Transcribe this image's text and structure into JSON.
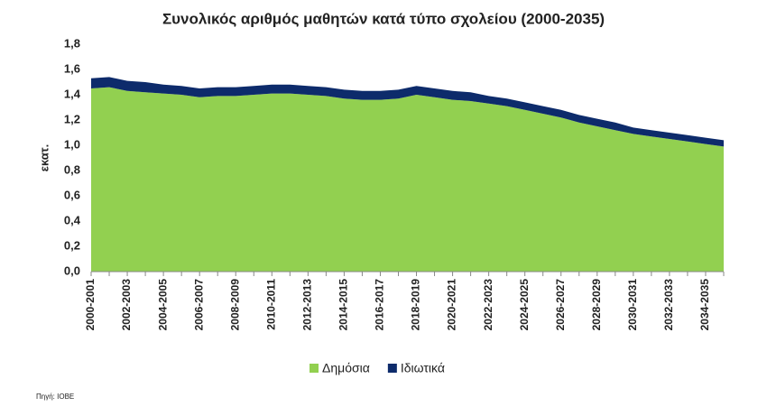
{
  "chart_data": {
    "type": "stacked-area",
    "title": "Συνολικός αριθμός μαθητών κατά τύπο σχολείου (2000-2035)",
    "y_label": "εκατ.",
    "source": "Πηγή: ΙΟΒΕ",
    "categories": [
      "2000-2001",
      null,
      "2002-2003",
      null,
      "2004-2005",
      null,
      "2006-2007",
      null,
      "2008-2009",
      null,
      "2010-2011",
      null,
      "2012-2013",
      null,
      "2014-2015",
      null,
      "2016-2017",
      null,
      "2018-2019",
      null,
      "2020-2021",
      null,
      "2022-2023",
      null,
      "2024-2025",
      null,
      "2026-2027",
      null,
      "2028-2029",
      null,
      "2030-2031",
      null,
      "2032-2033",
      null,
      "2034-2035",
      null
    ],
    "series": [
      {
        "name": "Δημόσια",
        "color": "#92d050",
        "values": [
          1.45,
          1.46,
          1.43,
          1.42,
          1.41,
          1.4,
          1.38,
          1.39,
          1.39,
          1.4,
          1.41,
          1.41,
          1.4,
          1.39,
          1.37,
          1.36,
          1.36,
          1.37,
          1.4,
          1.38,
          1.36,
          1.35,
          1.33,
          1.31,
          1.28,
          1.25,
          1.22,
          1.18,
          1.15,
          1.12,
          1.09,
          1.07,
          1.05,
          1.03,
          1.01,
          0.99
        ]
      },
      {
        "name": "Ιδιωτικά",
        "color": "#0d2b6b",
        "values": [
          0.08,
          0.08,
          0.08,
          0.08,
          0.07,
          0.07,
          0.07,
          0.07,
          0.07,
          0.07,
          0.07,
          0.07,
          0.07,
          0.07,
          0.07,
          0.07,
          0.07,
          0.07,
          0.07,
          0.07,
          0.07,
          0.07,
          0.06,
          0.06,
          0.06,
          0.06,
          0.06,
          0.06,
          0.06,
          0.06,
          0.05,
          0.05,
          0.05,
          0.05,
          0.05,
          0.05
        ]
      }
    ],
    "ylim": [
      0,
      1.8
    ],
    "yticks": [
      {
        "value": 0,
        "label": "0,0"
      },
      {
        "value": 0.2,
        "label": "0,2"
      },
      {
        "value": 0.4,
        "label": "0,4"
      },
      {
        "value": 0.6,
        "label": "0,6"
      },
      {
        "value": 0.8,
        "label": "0,8"
      },
      {
        "value": 1,
        "label": "1,0"
      },
      {
        "value": 1.2,
        "label": "1,2"
      },
      {
        "value": 1.4,
        "label": "1,4"
      },
      {
        "value": 1.6,
        "label": "1,6"
      },
      {
        "value": 1.8,
        "label": "1,8"
      }
    ],
    "grid": false
  }
}
